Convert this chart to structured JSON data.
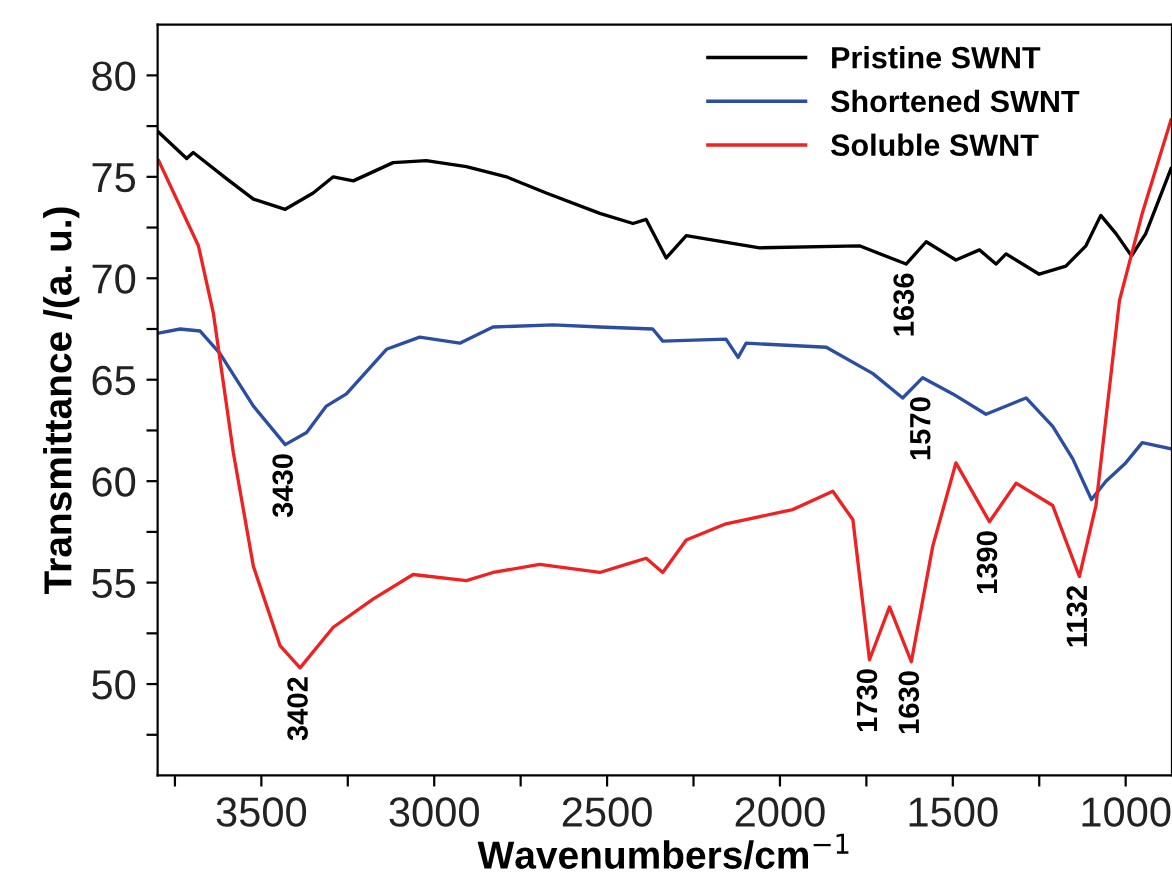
{
  "chart_data": {
    "type": "line",
    "xlabel": "Wavenumbers/cm$^{−1}$",
    "ylabel": "Transmittance /(a. u.)",
    "xlim": [
      3800,
      866
    ],
    "ylim": [
      45.5,
      82.5
    ],
    "xticks": [
      {
        "value": 3750,
        "label": null
      },
      3500,
      {
        "value": 3250,
        "label": null
      },
      3000,
      {
        "value": 2750,
        "label": null
      },
      2500,
      {
        "value": 2250,
        "label": null
      },
      2000,
      {
        "value": 1750,
        "label": null
      },
      1500,
      {
        "value": 1250,
        "label": null
      },
      1000
    ],
    "yticks": [
      {
        "value": 47.5,
        "label": null
      },
      50,
      {
        "value": 52.5,
        "label": null
      },
      55,
      {
        "value": 57.5,
        "label": null
      },
      60,
      {
        "value": 62.5,
        "label": null
      },
      65,
      {
        "value": 67.5,
        "label": null
      },
      70,
      {
        "value": 72.5,
        "label": null
      },
      75,
      {
        "value": 77.5,
        "label": null
      },
      80
    ],
    "grid": false,
    "legend": "top right",
    "marker": "none",
    "line_style": "solid",
    "series": [
      {
        "name": "Pristine SWNT",
        "color": "#000000",
        "x": [
          3797,
          3716,
          3697,
          3600,
          3523,
          3431,
          3350,
          3292,
          3234,
          3119,
          3023,
          2907,
          2791,
          2676,
          2521,
          2425,
          2387,
          2329,
          2271,
          2059,
          1770,
          1635,
          1577,
          1491,
          1423,
          1375,
          1346,
          1250,
          1173,
          1115,
          1072,
          1028,
          983,
          942,
          869
        ],
        "values": [
          77.2,
          75.9,
          76.2,
          74.9,
          73.9,
          73.4,
          74.2,
          75.0,
          74.8,
          75.7,
          75.8,
          75.5,
          75.0,
          74.2,
          73.2,
          72.7,
          72.9,
          71.0,
          72.1,
          71.5,
          71.6,
          70.7,
          71.8,
          70.9,
          71.4,
          70.7,
          71.2,
          70.2,
          70.6,
          71.6,
          73.1,
          72.2,
          71.1,
          72.2,
          75.4
        ]
      },
      {
        "name": "Shortened SWNT",
        "color": "#2b4ea2",
        "x": [
          3797,
          3735,
          3677,
          3620,
          3523,
          3431,
          3369,
          3312,
          3254,
          3138,
          3042,
          2926,
          2830,
          2656,
          2521,
          2368,
          2339,
          2156,
          2121,
          2098,
          1866,
          1731,
          1645,
          1587,
          1500,
          1404,
          1288,
          1211,
          1153,
          1099,
          1057,
          1000,
          952,
          869
        ],
        "values": [
          67.3,
          67.5,
          67.4,
          66.3,
          63.7,
          61.8,
          62.4,
          63.7,
          64.3,
          66.5,
          67.1,
          66.8,
          67.6,
          67.7,
          67.6,
          67.5,
          66.9,
          67.0,
          66.1,
          66.8,
          66.6,
          65.3,
          64.1,
          65.1,
          64.3,
          63.3,
          64.1,
          62.7,
          61.1,
          59.1,
          60.0,
          60.9,
          61.9,
          61.6
        ]
      },
      {
        "name": "Soluble SWNT",
        "color": "#ee2222",
        "x": [
          3797,
          3682,
          3639,
          3581,
          3523,
          3446,
          3388,
          3292,
          3176,
          3061,
          2907,
          2830,
          2695,
          2521,
          2445,
          2387,
          2339,
          2271,
          2156,
          1963,
          1847,
          1789,
          1741,
          1683,
          1620,
          1558,
          1491,
          1394,
          1317,
          1211,
          1134,
          1086,
          1018,
          952,
          869
        ],
        "values": [
          75.8,
          71.6,
          68.3,
          61.4,
          55.8,
          51.9,
          50.8,
          52.8,
          54.2,
          55.4,
          55.1,
          55.5,
          55.9,
          55.5,
          55.9,
          56.2,
          55.5,
          57.1,
          57.9,
          58.6,
          59.5,
          58.1,
          51.2,
          53.8,
          51.1,
          56.8,
          60.9,
          58.0,
          59.9,
          58.8,
          55.3,
          58.8,
          68.9,
          73.2,
          77.8
        ]
      }
    ],
    "annotations": [
      {
        "text": "3430",
        "x": 3431,
        "y": 61.8
      },
      {
        "text": "3402",
        "x": 3388,
        "y": 50.8
      },
      {
        "text": "1636",
        "x": 1635,
        "y": 70.7
      },
      {
        "text": "1570",
        "x": 1587,
        "y": 64.6
      },
      {
        "text": "1730",
        "x": 1741,
        "y": 51.2
      },
      {
        "text": "1630",
        "x": 1620,
        "y": 51.1
      },
      {
        "text": "1390",
        "x": 1394,
        "y": 58.0
      },
      {
        "text": "1132",
        "x": 1134,
        "y": 55.3
      }
    ]
  }
}
